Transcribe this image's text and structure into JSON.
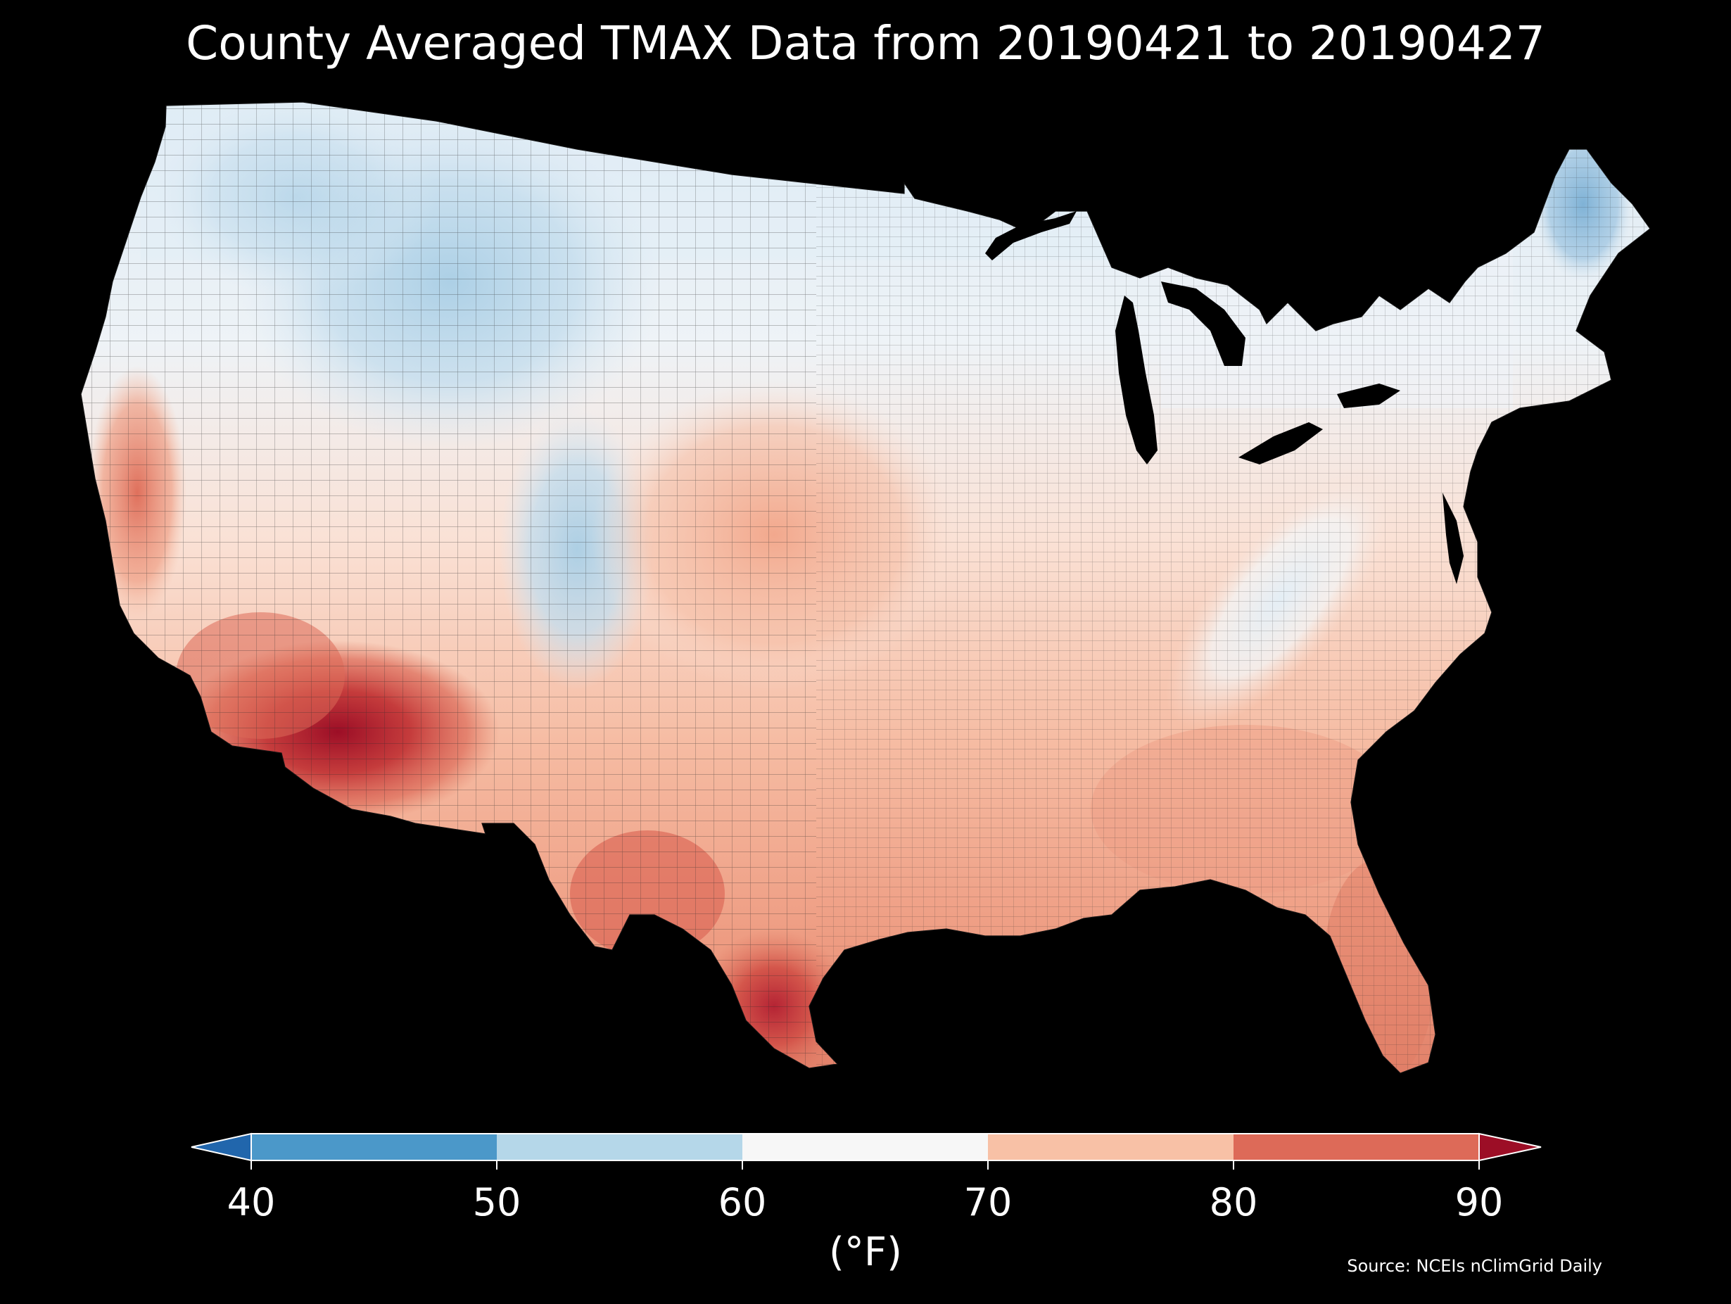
{
  "title": "County Averaged TMAX Data from 20190421 to 20190427",
  "source": "Source: NCEIs nClimGrid Daily",
  "map": {
    "region": "contiguous-united-states",
    "projection": "albers-equal-area",
    "background_color": "#000000",
    "county_boundary_color": "#1a1a1a",
    "regional_pattern": [
      {
        "region": "Pacific Northwest and Northern Rockies",
        "bin": "50-60"
      },
      {
        "region": "Northern Plains and Upper Midwest",
        "bin": "60-70"
      },
      {
        "region": "Northern Maine",
        "bin": "50-60"
      },
      {
        "region": "Central Great Plains",
        "bin": "70-80"
      },
      {
        "region": "Southeast",
        "bin": "70-80"
      },
      {
        "region": "Appalachians",
        "bin": "60-70"
      },
      {
        "region": "Southern Texas",
        "bin": "80-90"
      },
      {
        "region": "Southern California and Nevada desert",
        "bin": "80-90"
      },
      {
        "region": "Southwest Arizona",
        "bin": ">90"
      },
      {
        "region": "Rio Grande valley south Texas",
        "bin": ">90"
      }
    ]
  },
  "colorbar": {
    "unit_label": "(°F)",
    "ticks": [
      "40",
      "50",
      "60",
      "70",
      "80",
      "90"
    ],
    "tick_values": [
      40,
      50,
      60,
      70,
      80,
      90
    ],
    "extend": "both",
    "bins": [
      {
        "range": "<40",
        "color": "#2166ac"
      },
      {
        "range": "40-50",
        "color": "#4b98c9"
      },
      {
        "range": "50-60",
        "color": "#b5d7e9"
      },
      {
        "range": "60-70",
        "color": "#f7f7f7"
      },
      {
        "range": "70-80",
        "color": "#f8c1a6"
      },
      {
        "range": "80-90",
        "color": "#dd6a58"
      },
      {
        "range": ">90",
        "color": "#9c0e26"
      }
    ]
  }
}
